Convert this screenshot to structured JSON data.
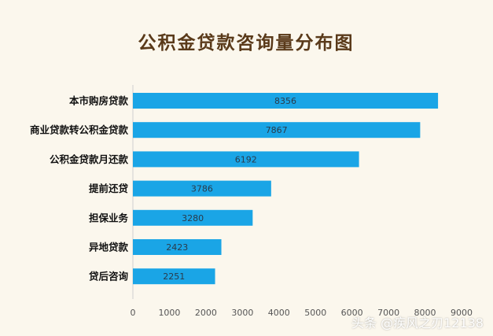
{
  "chart_data": {
    "type": "bar",
    "orientation": "horizontal",
    "title": "公积金贷款咨询量分布图",
    "categories": [
      "本市购房贷款",
      "商业贷款转公积金贷款",
      "公积金贷款月还款",
      "提前还贷",
      "担保业务",
      "异地贷款",
      "贷后咨询"
    ],
    "values": [
      8356,
      7867,
      6192,
      3786,
      3280,
      2423,
      2251
    ],
    "xlim": [
      0,
      9000
    ],
    "xticks": [
      0,
      1000,
      2000,
      3000,
      4000,
      5000,
      6000,
      7000,
      8000,
      9000
    ],
    "grid": false,
    "bar_color": "#1aa5e6"
  },
  "watermark": "头条 @疾风之刃12138"
}
